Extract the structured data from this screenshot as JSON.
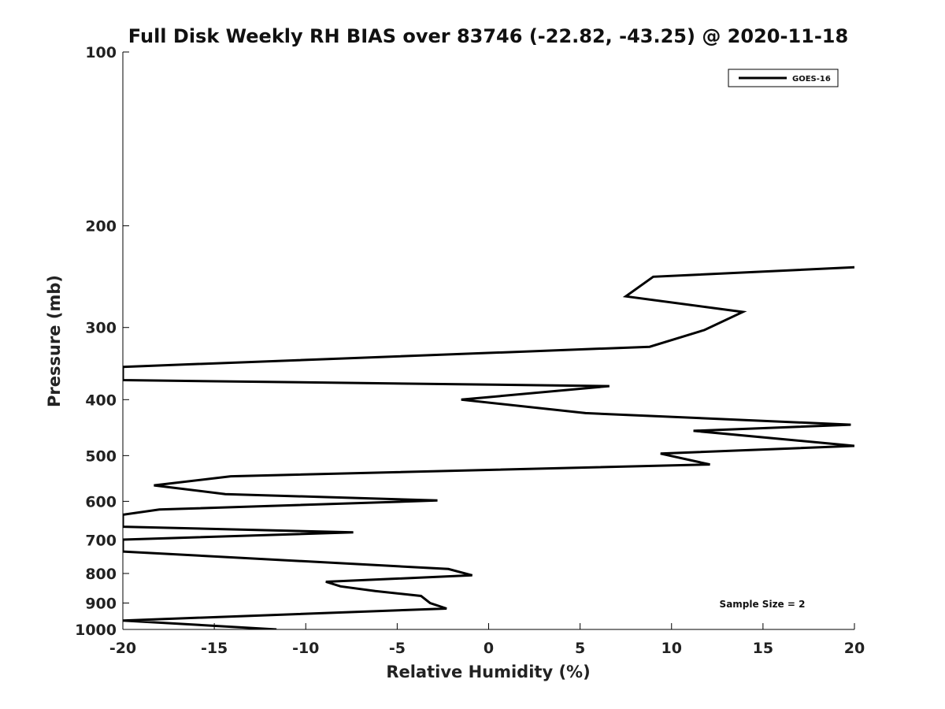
{
  "chart_data": {
    "type": "line",
    "title": "Full Disk Weekly RH BIAS over 83746 (-22.82, -43.25) @ 2020-11-18",
    "xlabel": "Relative Humidity (%)",
    "ylabel": "Pressure (mb)",
    "xlim": [
      -20,
      20
    ],
    "ylim": [
      100,
      1000
    ],
    "y_scale": "log",
    "y_reversed": true,
    "xticks": [
      -20,
      -15,
      -10,
      -5,
      0,
      5,
      10,
      15,
      20
    ],
    "xtick_labels": [
      "-20",
      "-15",
      "-10",
      "-5",
      "0",
      "5",
      "10",
      "15",
      "20"
    ],
    "yticks": [
      100,
      200,
      300,
      400,
      500,
      600,
      700,
      800,
      900,
      1000
    ],
    "ytick_labels": [
      "100",
      "200",
      "300",
      "400",
      "500",
      "600",
      "700",
      "800",
      "900",
      "1000"
    ],
    "grid": false,
    "legend_position": "top-right",
    "series": [
      {
        "name": "GOES-16",
        "color": "#000000",
        "points": [
          [
            20,
            236
          ],
          [
            9,
            245
          ],
          [
            7.5,
            265
          ],
          [
            13.9,
            282
          ],
          [
            11.8,
            303
          ],
          [
            8.8,
            324
          ],
          [
            -20,
            351
          ],
          [
            -20,
            370
          ],
          [
            6.6,
            379
          ],
          [
            -1.5,
            400
          ],
          [
            5.3,
            422
          ],
          [
            19.8,
            442
          ],
          [
            11.2,
            453
          ],
          [
            20,
            481
          ],
          [
            9.4,
            496
          ],
          [
            12.1,
            518
          ],
          [
            -14.1,
            543
          ],
          [
            -18.3,
            563
          ],
          [
            -14.4,
            583
          ],
          [
            -2.8,
            598
          ],
          [
            -18,
            620
          ],
          [
            -20,
            633
          ],
          [
            -20,
            664
          ],
          [
            -7.4,
            679
          ],
          [
            -20,
            699
          ],
          [
            -20,
            733
          ],
          [
            -2.2,
            786
          ],
          [
            -0.9,
            806
          ],
          [
            -8.9,
            827
          ],
          [
            -8.1,
            842
          ],
          [
            -6.2,
            858
          ],
          [
            -3.7,
            875
          ],
          [
            -3.2,
            900
          ],
          [
            -2.3,
            920
          ],
          [
            -20,
            965
          ],
          [
            -11.6,
            1000
          ]
        ]
      }
    ],
    "annotations": [
      "Sample Size = 2"
    ]
  }
}
